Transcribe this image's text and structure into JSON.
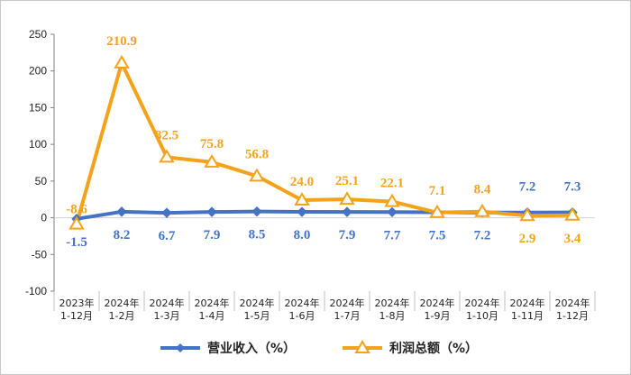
{
  "chart_data": {
    "type": "line",
    "categories": [
      [
        "2023年",
        "1-12月"
      ],
      [
        "2024年",
        "1-2月"
      ],
      [
        "2024年",
        "1-3月"
      ],
      [
        "2024年",
        "1-4月"
      ],
      [
        "2024年",
        "1-5月"
      ],
      [
        "2024年",
        "1-6月"
      ],
      [
        "2024年",
        "1-7月"
      ],
      [
        "2024年",
        "1-8月"
      ],
      [
        "2024年",
        "1-9月"
      ],
      [
        "2024年",
        "1-10月"
      ],
      [
        "2024年",
        "1-11月"
      ],
      [
        "2024年",
        "1-12月"
      ]
    ],
    "ylim": [
      -100,
      250
    ],
    "yticks": [
      -100,
      -50,
      0,
      50,
      100,
      150,
      200,
      250
    ],
    "series": [
      {
        "name": "营业收入（%）",
        "color": "#4472c4",
        "marker": "diamond",
        "values": [
          -1.5,
          8.2,
          6.7,
          7.9,
          8.5,
          8.0,
          7.9,
          7.7,
          7.5,
          7.2,
          7.2,
          7.3
        ],
        "labels": [
          "-1.5",
          "8.2",
          "6.7",
          "7.9",
          "8.5",
          "8.0",
          "7.9",
          "7.7",
          "7.5",
          "7.2",
          "7.2",
          "7.3"
        ]
      },
      {
        "name": "利润总额（%）",
        "color": "#f5a21b",
        "marker": "triangle",
        "values": [
          -8.6,
          210.9,
          82.5,
          75.8,
          56.8,
          24.0,
          25.1,
          22.1,
          7.1,
          8.4,
          2.9,
          3.4
        ],
        "labels": [
          "-8.6",
          "210.9",
          "82.5",
          "75.8",
          "56.8",
          "24.0",
          "25.1",
          "22.1",
          "7.1",
          "8.4",
          "2.9",
          "3.4"
        ]
      }
    ]
  }
}
